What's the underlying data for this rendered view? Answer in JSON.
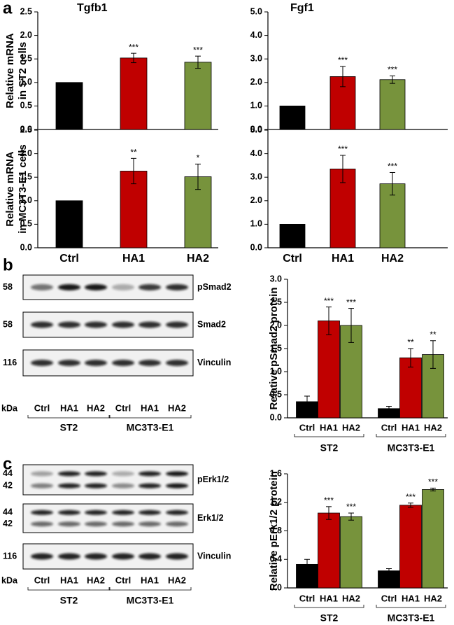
{
  "panel_labels": [
    "a",
    "b",
    "c"
  ],
  "chart_data": [
    {
      "type": "bar",
      "title": "Tgfb1",
      "ylabel": [
        "Relative mRNA",
        "in ST2 cells"
      ],
      "categories": [
        null,
        null,
        null
      ],
      "values": [
        1.0,
        1.52,
        1.43
      ],
      "errors": [
        null,
        0.1,
        0.13
      ],
      "annotations": [
        null,
        "***",
        "***"
      ],
      "colors": [
        "#000000",
        "#c00000",
        "#77933c"
      ],
      "ylim": [
        0,
        2.5
      ],
      "yticks": [
        {
          "value": 0,
          "label": "0.0"
        },
        0.5,
        {
          "value": 1,
          "label": "1.0"
        },
        1.5,
        {
          "value": 2,
          "label": "2.0"
        },
        2.5
      ]
    },
    {
      "type": "bar",
      "title": "Fgf1",
      "categories": [
        null,
        null,
        null
      ],
      "values": [
        1.0,
        2.25,
        2.12
      ],
      "errors": [
        null,
        0.43,
        0.16
      ],
      "annotations": [
        null,
        "***",
        "***"
      ],
      "colors": [
        "#000000",
        "#c00000",
        "#77933c"
      ],
      "ylim": [
        0,
        5
      ],
      "yticks": [
        {
          "value": 0,
          "label": "0.0"
        },
        {
          "value": 1,
          "label": "1.0"
        },
        {
          "value": 2,
          "label": "2.0"
        },
        {
          "value": 3,
          "label": "3.0"
        },
        {
          "value": 4,
          "label": "4.0"
        },
        {
          "value": 5,
          "label": "5.0"
        }
      ]
    },
    {
      "type": "bar",
      "ylabel": [
        "Relative mRNA",
        "in MC3T3-E1 cells"
      ],
      "categories": [
        "Ctrl",
        "HA1",
        "HA2"
      ],
      "values": [
        1.0,
        1.63,
        1.51
      ],
      "errors": [
        null,
        0.27,
        0.27
      ],
      "annotations": [
        null,
        "**",
        "*"
      ],
      "colors": [
        "#000000",
        "#c00000",
        "#77933c"
      ],
      "ylim": [
        0,
        2.5
      ],
      "yticks": [
        {
          "value": 0,
          "label": "0.0"
        },
        0.5,
        {
          "value": 1,
          "label": "1.0"
        },
        1.5,
        {
          "value": 2,
          "label": "2.0"
        },
        2.5
      ]
    },
    {
      "type": "bar",
      "categories": [
        "Ctrl",
        "HA1",
        "HA2"
      ],
      "values": [
        1.0,
        3.35,
        2.72
      ],
      "errors": [
        null,
        0.58,
        0.48
      ],
      "annotations": [
        null,
        "***",
        "***"
      ],
      "colors": [
        "#000000",
        "#c00000",
        "#77933c"
      ],
      "ylim": [
        0,
        5
      ],
      "yticks": [
        {
          "value": 0,
          "label": "0.0"
        },
        {
          "value": 1,
          "label": "1.0"
        },
        {
          "value": 2,
          "label": "2.0"
        },
        {
          "value": 3,
          "label": "3.0"
        },
        {
          "value": 4,
          "label": "4.0"
        },
        {
          "value": 5,
          "label": "5.0"
        }
      ]
    },
    {
      "type": "bar",
      "ylabel": [
        "Relative pSmad2 protein"
      ],
      "categories": [
        "Ctrl",
        "HA1",
        "HA2",
        "Ctrl",
        "HA1",
        "HA2"
      ],
      "groups": [
        "ST2",
        "MC3T3-E1"
      ],
      "values": [
        0.35,
        2.1,
        2.0,
        0.2,
        1.3,
        1.37
      ],
      "errors": [
        0.12,
        0.3,
        0.37,
        0.05,
        0.2,
        0.3
      ],
      "annotations": [
        null,
        "***",
        "***",
        null,
        "**",
        "**"
      ],
      "colors": [
        "#000000",
        "#c00000",
        "#77933c",
        "#000000",
        "#c00000",
        "#77933c"
      ],
      "ylim": [
        0,
        3
      ],
      "yticks": [
        {
          "value": 0,
          "label": "0.0"
        },
        0.5,
        {
          "value": 1,
          "label": "1.0"
        },
        1.5,
        {
          "value": 2,
          "label": "2.0"
        },
        2.5,
        {
          "value": 3,
          "label": "3.0"
        }
      ]
    },
    {
      "type": "bar",
      "ylabel": [
        "Relative pErk1/2 protein"
      ],
      "categories": [
        "Ctrl",
        "HA1",
        "HA2",
        "Ctrl",
        "HA1",
        "HA2"
      ],
      "groups": [
        "ST2",
        "MC3T3-E1"
      ],
      "values": [
        0.33,
        1.05,
        1.0,
        0.24,
        1.16,
        1.38
      ],
      "errors": [
        0.07,
        0.09,
        0.05,
        0.03,
        0.03,
        0.02
      ],
      "annotations": [
        null,
        "***",
        "***",
        null,
        "***",
        "***"
      ],
      "colors": [
        "#000000",
        "#c00000",
        "#77933c",
        "#000000",
        "#c00000",
        "#77933c"
      ],
      "ylim": [
        0,
        1.6
      ],
      "yticks": [
        {
          "value": 0,
          "label": "0.0"
        },
        0.4,
        0.8,
        1.2,
        1.6
      ]
    }
  ],
  "blots": [
    {
      "rows": [
        {
          "markers": [
            "58"
          ],
          "label": "pSmad2"
        },
        {
          "markers": [
            "58"
          ],
          "label": "Smad2"
        },
        {
          "markers": [
            "116"
          ],
          "label": "Vinculin"
        }
      ],
      "unit": "kDa",
      "lanes": [
        "Ctrl",
        "HA1",
        "HA2",
        "Ctrl",
        "HA1",
        "HA2"
      ],
      "groups": [
        "ST2",
        "MC3T3-E1"
      ]
    },
    {
      "rows": [
        {
          "markers": [
            "44",
            "42"
          ],
          "label": "pErk1/2"
        },
        {
          "markers": [
            "44",
            "42"
          ],
          "label": "Erk1/2"
        },
        {
          "markers": [
            "116"
          ],
          "label": "Vinculin"
        }
      ],
      "unit": "kDa",
      "lanes": [
        "Ctrl",
        "HA1",
        "HA2",
        "Ctrl",
        "HA1",
        "HA2"
      ],
      "groups": [
        "ST2",
        "MC3T3-E1"
      ]
    }
  ]
}
